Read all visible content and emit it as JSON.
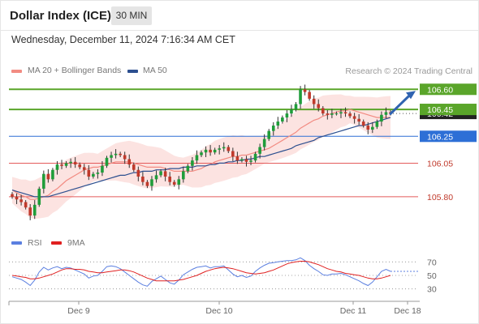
{
  "header": {
    "title": "Dollar Index (ICE)",
    "timeframe_label": "30 MIN",
    "datetime": "Wednesday, December 11, 2024 7:16:34 AM CET"
  },
  "legend": {
    "ma20_label": "MA 20 + Bollinger Bands",
    "ma50_label": "MA 50",
    "credit": "Research © 2024 Trading Central"
  },
  "rsi_legend": {
    "rsi_label": "RSI",
    "ma_label": "9MA"
  },
  "colors": {
    "bull": "#1f9d3a",
    "bear": "#c0392b",
    "ma20": "#f28b82",
    "ma50": "#2c4f8f",
    "band": "#fbd9d7",
    "resistance": "#5aa52a",
    "pivot": "#2d6fd6",
    "support": "#e45a5a",
    "current_price_box": "#222222",
    "arrow": "#2f63b0",
    "rsi_line": "#5b7fe0",
    "rsi_ma": "#e02020"
  },
  "chart_data": [
    {
      "type": "candlestick",
      "title": "Dollar Index (ICE)",
      "timeframe": "30 MIN",
      "x_ticks": [
        "Dec 9",
        "Dec 10",
        "Dec 11",
        "Dec 18"
      ],
      "ylim": [
        105.54,
        106.68
      ],
      "last_price": 106.42,
      "levels": [
        {
          "value": 106.6,
          "label": "106.60",
          "role": "resistance"
        },
        {
          "value": 106.45,
          "label": "106.45",
          "role": "resistance"
        },
        {
          "value": 106.25,
          "label": "106.25",
          "role": "pivot"
        },
        {
          "value": 106.05,
          "label": "106.05",
          "role": "support"
        },
        {
          "value": 105.8,
          "label": "105.80",
          "role": "support"
        }
      ],
      "forecast_arrow": {
        "from": 106.4,
        "to": 106.6
      },
      "close": [
        105.8,
        105.78,
        105.76,
        105.72,
        105.66,
        105.74,
        105.86,
        105.97,
        105.93,
        106.0,
        106.04,
        106.03,
        106.05,
        106.06,
        106.04,
        106.02,
        106.0,
        105.95,
        105.97,
        105.98,
        106.03,
        106.09,
        106.11,
        106.12,
        106.11,
        106.08,
        106.04,
        106.0,
        105.95,
        105.91,
        105.88,
        105.93,
        105.96,
        105.99,
        105.95,
        105.91,
        105.89,
        105.93,
        105.99,
        106.03,
        106.07,
        106.11,
        106.13,
        106.15,
        106.13,
        106.15,
        106.16,
        106.17,
        106.14,
        106.1,
        106.07,
        106.08,
        106.06,
        106.07,
        106.12,
        106.17,
        106.23,
        106.29,
        106.33,
        106.36,
        106.39,
        106.42,
        106.45,
        106.49,
        106.6,
        106.58,
        106.53,
        106.49,
        106.46,
        106.42,
        106.41,
        106.42,
        106.42,
        106.43,
        106.42,
        106.4,
        106.38,
        106.36,
        106.33,
        106.3,
        106.32,
        106.36,
        106.41,
        106.43,
        106.42
      ],
      "ma20": [
        105.85,
        105.83,
        105.81,
        105.8,
        105.78,
        105.78,
        105.79,
        105.8,
        105.81,
        105.84,
        105.86,
        105.89,
        105.92,
        105.94,
        105.96,
        105.98,
        106.0,
        106.01,
        106.02,
        106.02,
        106.03,
        106.04,
        106.05,
        106.06,
        106.06,
        106.06,
        106.06,
        106.05,
        106.04,
        106.03,
        106.02,
        106.02,
        106.02,
        106.02,
        106.01,
        106.0,
        105.99,
        105.99,
        105.99,
        105.99,
        105.99,
        106.0,
        106.01,
        106.03,
        106.04,
        106.06,
        106.07,
        106.08,
        106.09,
        106.1,
        106.1,
        106.11,
        106.11,
        106.12,
        106.13,
        106.14,
        106.15,
        106.16,
        106.18,
        106.2,
        106.22,
        106.24,
        106.26,
        106.28,
        106.31,
        106.33,
        106.35,
        106.37,
        106.38,
        106.4,
        106.41,
        106.42,
        106.43,
        106.44,
        106.44,
        106.45,
        106.44,
        106.43,
        106.42,
        106.41,
        106.4,
        106.39,
        106.39,
        106.39,
        106.39
      ],
      "ma50": [
        105.85,
        105.84,
        105.83,
        105.82,
        105.81,
        105.8,
        105.8,
        105.8,
        105.8,
        105.81,
        105.82,
        105.83,
        105.84,
        105.85,
        105.86,
        105.87,
        105.88,
        105.89,
        105.9,
        105.91,
        105.92,
        105.93,
        105.94,
        105.95,
        105.96,
        105.96,
        105.97,
        105.98,
        105.98,
        105.99,
        105.99,
        105.99,
        106.0,
        106.0,
        106.0,
        106.01,
        106.01,
        106.01,
        106.02,
        106.02,
        106.02,
        106.03,
        106.03,
        106.03,
        106.04,
        106.04,
        106.05,
        106.05,
        106.06,
        106.06,
        106.07,
        106.07,
        106.08,
        106.08,
        106.09,
        106.1,
        106.1,
        106.11,
        106.12,
        106.13,
        106.14,
        106.15,
        106.16,
        106.18,
        106.19,
        106.2,
        106.21,
        106.22,
        106.24,
        106.25,
        106.26,
        106.27,
        106.28,
        106.29,
        106.3,
        106.31,
        106.32,
        106.33,
        106.33,
        106.34,
        106.35,
        106.36,
        106.37,
        106.38,
        106.39
      ],
      "band_width": 0.14
    },
    {
      "type": "line",
      "title": "RSI",
      "ylim": [
        20,
        80
      ],
      "yticks": [
        30,
        50,
        70
      ],
      "series": [
        {
          "name": "RSI",
          "values": [
            48,
            46,
            44,
            40,
            35,
            43,
            55,
            62,
            58,
            61,
            63,
            60,
            62,
            61,
            58,
            55,
            52,
            46,
            49,
            50,
            56,
            63,
            64,
            63,
            60,
            55,
            50,
            45,
            40,
            36,
            34,
            41,
            45,
            49,
            44,
            39,
            37,
            43,
            51,
            55,
            59,
            62,
            63,
            64,
            61,
            63,
            63,
            64,
            58,
            52,
            48,
            50,
            47,
            49,
            56,
            61,
            65,
            68,
            69,
            70,
            71,
            72,
            72,
            73,
            76,
            72,
            65,
            60,
            56,
            51,
            50,
            52,
            52,
            53,
            51,
            48,
            45,
            42,
            38,
            35,
            40,
            48,
            56,
            59,
            56
          ]
        },
        {
          "name": "9MA",
          "values": [
            50,
            49,
            48,
            47,
            45,
            45,
            46,
            48,
            50,
            52,
            55,
            58,
            60,
            60,
            59,
            59,
            58,
            56,
            55,
            54,
            54,
            55,
            56,
            57,
            58,
            58,
            57,
            55,
            52,
            49,
            46,
            44,
            42,
            42,
            42,
            42,
            42,
            43,
            44,
            46,
            48,
            50,
            53,
            56,
            58,
            60,
            61,
            62,
            61,
            60,
            58,
            56,
            54,
            53,
            52,
            53,
            54,
            56,
            58,
            61,
            64,
            67,
            69,
            70,
            71,
            71,
            70,
            68,
            66,
            63,
            60,
            58,
            56,
            55,
            53,
            52,
            51,
            50,
            48,
            46,
            45,
            45,
            46,
            48,
            50
          ]
        }
      ]
    }
  ]
}
